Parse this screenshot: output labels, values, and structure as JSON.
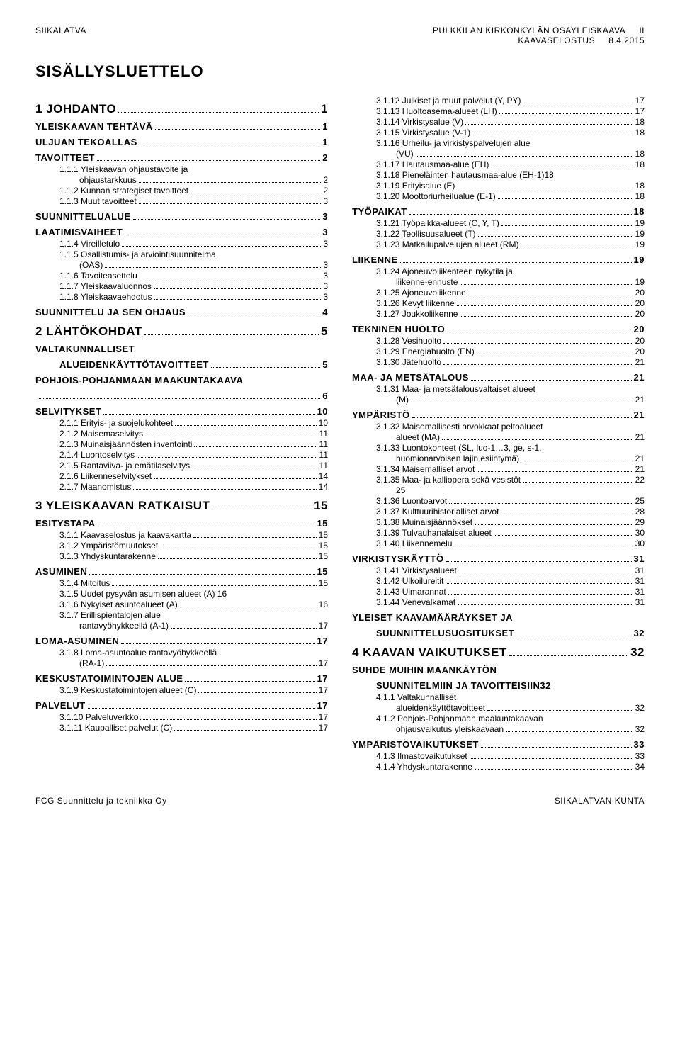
{
  "header": {
    "left": "SIIKALATVA",
    "right1": "PULKKILAN KIRKONKYLÄN OSAYLEISKAAVA",
    "right2": "KAAVASELOSTUS",
    "pageroman": "II",
    "date": "8.4.2015"
  },
  "title": "SISÄLLYSLUETTELO",
  "footer": {
    "left": "FCG Suunnittelu ja tekniikka Oy",
    "right": "SIIKALATVAN KUNTA"
  },
  "colL": [
    {
      "cls": "lvl1",
      "ind": "ind0",
      "label": "1  JOHDANTO",
      "page": "1"
    },
    {
      "cls": "lvl2",
      "ind": "ind0",
      "label": "YLEISKAAVAN TEHTÄVÄ",
      "page": "1"
    },
    {
      "cls": "lvl2",
      "ind": "ind0",
      "label": "ULJUAN TEKOALLAS",
      "page": "1"
    },
    {
      "cls": "lvl2",
      "ind": "ind0",
      "label": "TAVOITTEET",
      "page": "2"
    },
    {
      "cls": "lvl3",
      "ind": "ind1",
      "label": "1.1.1  Yleiskaavan ohjaustavoite ja",
      "nopg": true
    },
    {
      "cls": "lvl3",
      "ind": "ind3",
      "label": "ohjaustarkkuus",
      "page": "2"
    },
    {
      "cls": "lvl3",
      "ind": "ind1",
      "label": "1.1.2  Kunnan strategiset tavoitteet",
      "page": "2"
    },
    {
      "cls": "lvl3",
      "ind": "ind1",
      "label": "1.1.3  Muut tavoitteet",
      "page": "3"
    },
    {
      "cls": "lvl2",
      "ind": "ind0",
      "label": "SUUNNITTELUALUE",
      "page": "3"
    },
    {
      "cls": "lvl2",
      "ind": "ind0",
      "label": "LAATIMISVAIHEET",
      "page": "3"
    },
    {
      "cls": "lvl3",
      "ind": "ind1",
      "label": "1.1.4  Vireilletulo",
      "page": "3"
    },
    {
      "cls": "lvl3",
      "ind": "ind1",
      "label": "1.1.5  Osallistumis- ja arviointisuunnitelma",
      "nopg": true
    },
    {
      "cls": "lvl3",
      "ind": "ind3",
      "label": "(OAS)",
      "page": "3"
    },
    {
      "cls": "lvl3",
      "ind": "ind1",
      "label": "1.1.6  Tavoiteasettelu",
      "page": "3"
    },
    {
      "cls": "lvl3",
      "ind": "ind1",
      "label": "1.1.7  Yleiskaavaluonnos",
      "page": "3"
    },
    {
      "cls": "lvl3",
      "ind": "ind1",
      "label": "1.1.8  Yleiskaavaehdotus",
      "page": "3"
    },
    {
      "cls": "lvl2",
      "ind": "ind0",
      "label": "SUUNNITTELU JA SEN OHJAUS",
      "page": "4"
    },
    {
      "cls": "lvl1",
      "ind": "ind0",
      "label": "2  LÄHTÖKOHDAT",
      "page": "5"
    },
    {
      "cls": "lvl2",
      "ind": "ind0",
      "label": "VALTAKUNNALLISET",
      "nopg": true
    },
    {
      "cls": "lvl2",
      "ind": "ind1",
      "label": "ALUEIDENKÄYTTÖTAVOITTEET",
      "page": "5"
    },
    {
      "cls": "lvl2",
      "ind": "ind0",
      "label": "POHJOIS-POHJANMAAN MAAKUNTAKAAVA",
      "nopg": true
    },
    {
      "cls": "lvl2",
      "ind": "ind0",
      "label": "",
      "page": "6"
    },
    {
      "cls": "lvl2",
      "ind": "ind0",
      "label": "SELVITYKSET",
      "page": "10"
    },
    {
      "cls": "lvl3",
      "ind": "ind1",
      "label": "2.1.1  Erityis- ja suojelukohteet",
      "page": "10"
    },
    {
      "cls": "lvl3",
      "ind": "ind1",
      "label": "2.1.2  Maisemaselvitys",
      "page": "11"
    },
    {
      "cls": "lvl3",
      "ind": "ind1",
      "label": "2.1.3  Muinaisjäännösten inventointi",
      "page": "11"
    },
    {
      "cls": "lvl3",
      "ind": "ind1",
      "label": "2.1.4  Luontoselvitys",
      "page": "11"
    },
    {
      "cls": "lvl3",
      "ind": "ind1",
      "label": "2.1.5  Rantaviiva- ja emätilaselvitys",
      "page": "11"
    },
    {
      "cls": "lvl3",
      "ind": "ind1",
      "label": "2.1.6  Liikenneselvitykset",
      "page": "14"
    },
    {
      "cls": "lvl3",
      "ind": "ind1",
      "label": "2.1.7  Maanomistus",
      "page": "14"
    },
    {
      "cls": "lvl1",
      "ind": "ind0",
      "label": "3  YLEISKAAVAN RATKAISUT",
      "page": "15"
    },
    {
      "cls": "lvl2",
      "ind": "ind0",
      "label": "ESITYSTAPA",
      "page": "15"
    },
    {
      "cls": "lvl3",
      "ind": "ind1",
      "label": "3.1.1  Kaavaselostus ja kaavakartta",
      "page": "15"
    },
    {
      "cls": "lvl3",
      "ind": "ind1",
      "label": "3.1.2  Ympäristömuutokset",
      "page": "15"
    },
    {
      "cls": "lvl3",
      "ind": "ind1",
      "label": "3.1.3  Yhdyskuntarakenne",
      "page": "15"
    },
    {
      "cls": "lvl2",
      "ind": "ind0",
      "label": "ASUMINEN",
      "page": "15"
    },
    {
      "cls": "lvl3",
      "ind": "ind1",
      "label": "3.1.4  Mitoitus",
      "page": "15"
    },
    {
      "cls": "lvl3",
      "ind": "ind1",
      "label": "3.1.5  Uudet pysyvän asumisen alueet (A) 16",
      "nopg": true
    },
    {
      "cls": "lvl3",
      "ind": "ind1",
      "label": "3.1.6  Nykyiset asuntoalueet (A)",
      "page": "16"
    },
    {
      "cls": "lvl3",
      "ind": "ind1",
      "label": "3.1.7  Erillispientalojen alue",
      "nopg": true
    },
    {
      "cls": "lvl3",
      "ind": "ind3",
      "label": "rantavyöhykkeellä (A-1)",
      "page": "17"
    },
    {
      "cls": "lvl2",
      "ind": "ind0",
      "label": "LOMA-ASUMINEN",
      "page": "17"
    },
    {
      "cls": "lvl3",
      "ind": "ind1",
      "label": "3.1.8  Loma-asuntoalue rantavyöhykkeellä",
      "nopg": true
    },
    {
      "cls": "lvl3",
      "ind": "ind3",
      "label": "(RA-1)",
      "page": "17"
    },
    {
      "cls": "lvl2",
      "ind": "ind0",
      "label": "KESKUSTATOIMINTOJEN ALUE",
      "page": "17"
    },
    {
      "cls": "lvl3",
      "ind": "ind1",
      "label": "3.1.9  Keskustatoimintojen alueet (C)",
      "page": "17"
    },
    {
      "cls": "lvl2",
      "ind": "ind0",
      "label": "PALVELUT",
      "page": "17"
    },
    {
      "cls": "lvl3",
      "ind": "ind1",
      "label": "3.1.10 Palveluverkko",
      "page": "17"
    },
    {
      "cls": "lvl3",
      "ind": "ind1",
      "label": "3.1.11 Kaupalliset palvelut (C)",
      "page": "17"
    }
  ],
  "colR": [
    {
      "cls": "lvl3",
      "ind": "ind1",
      "label": "3.1.12 Julkiset ja muut palvelut (Y, PY)",
      "page": "17"
    },
    {
      "cls": "lvl3",
      "ind": "ind1",
      "label": "3.1.13 Huoltoasema-alueet (LH)",
      "page": "17"
    },
    {
      "cls": "lvl3",
      "ind": "ind1",
      "label": "3.1.14 Virkistysalue (V)",
      "page": "18"
    },
    {
      "cls": "lvl3",
      "ind": "ind1",
      "label": "3.1.15 Virkistysalue (V-1)",
      "page": "18"
    },
    {
      "cls": "lvl3",
      "ind": "ind1",
      "label": "3.1.16 Urheilu- ja virkistyspalvelujen alue",
      "nopg": true
    },
    {
      "cls": "lvl3",
      "ind": "ind3",
      "label": "(VU)",
      "page": "18"
    },
    {
      "cls": "lvl3",
      "ind": "ind1",
      "label": "3.1.17 Hautausmaa-alue (EH)",
      "page": "18"
    },
    {
      "cls": "lvl3",
      "ind": "ind1",
      "label": "3.1.18 Pieneläinten hautausmaa-alue (EH-1)18",
      "nopg": true
    },
    {
      "cls": "lvl3",
      "ind": "ind1",
      "label": "3.1.19 Erityisalue (E)",
      "page": "18"
    },
    {
      "cls": "lvl3",
      "ind": "ind1",
      "label": "3.1.20 Moottoriurheilualue (E-1)",
      "page": "18"
    },
    {
      "cls": "lvl2",
      "ind": "ind0",
      "label": "TYÖPAIKAT",
      "page": "18"
    },
    {
      "cls": "lvl3",
      "ind": "ind1",
      "label": "3.1.21 Työpaikka-alueet (C, Y, T)",
      "page": "19"
    },
    {
      "cls": "lvl3",
      "ind": "ind1",
      "label": "3.1.22 Teollisuusalueet (T)",
      "page": "19"
    },
    {
      "cls": "lvl3",
      "ind": "ind1",
      "label": "3.1.23 Matkailupalvelujen alueet (RM)",
      "page": "19"
    },
    {
      "cls": "lvl2",
      "ind": "ind0",
      "label": "LIIKENNE",
      "page": "19"
    },
    {
      "cls": "lvl3",
      "ind": "ind1",
      "label": "3.1.24 Ajoneuvoliikenteen nykytila ja",
      "nopg": true
    },
    {
      "cls": "lvl3",
      "ind": "ind3",
      "label": "liikenne-ennuste",
      "page": "19"
    },
    {
      "cls": "lvl3",
      "ind": "ind1",
      "label": "3.1.25 Ajoneuvoliikenne",
      "page": "20"
    },
    {
      "cls": "lvl3",
      "ind": "ind1",
      "label": "3.1.26 Kevyt liikenne",
      "page": "20"
    },
    {
      "cls": "lvl3",
      "ind": "ind1",
      "label": "3.1.27 Joukkoliikenne",
      "page": "20"
    },
    {
      "cls": "lvl2",
      "ind": "ind0",
      "label": "TEKNINEN HUOLTO",
      "page": "20"
    },
    {
      "cls": "lvl3",
      "ind": "ind1",
      "label": "3.1.28 Vesihuolto",
      "page": "20"
    },
    {
      "cls": "lvl3",
      "ind": "ind1",
      "label": "3.1.29 Energiahuolto (EN)",
      "page": "20"
    },
    {
      "cls": "lvl3",
      "ind": "ind1",
      "label": "3.1.30 Jätehuolto",
      "page": "21"
    },
    {
      "cls": "lvl2",
      "ind": "ind0",
      "label": "MAA- JA METSÄTALOUS",
      "page": "21"
    },
    {
      "cls": "lvl3",
      "ind": "ind1",
      "label": "3.1.31 Maa- ja metsätalousvaltaiset alueet",
      "nopg": true
    },
    {
      "cls": "lvl3",
      "ind": "ind3",
      "label": "(M)",
      "page": "21"
    },
    {
      "cls": "lvl2",
      "ind": "ind0",
      "label": "YMPÄRISTÖ",
      "page": "21"
    },
    {
      "cls": "lvl3",
      "ind": "ind1",
      "label": "3.1.32 Maisemallisesti arvokkaat peltoalueet",
      "nopg": true
    },
    {
      "cls": "lvl3",
      "ind": "ind3",
      "label": "alueet (MA)",
      "page": "21"
    },
    {
      "cls": "lvl3",
      "ind": "ind1",
      "label": "3.1.33 Luontokohteet (SL, luo-1…3, ge, s-1,",
      "nopg": true
    },
    {
      "cls": "lvl3",
      "ind": "ind3",
      "label": "huomionarvoisen lajin esiintymä)",
      "page": "21"
    },
    {
      "cls": "lvl3",
      "ind": "ind1",
      "label": "3.1.34 Maisemalliset arvot",
      "page": "21"
    },
    {
      "cls": "lvl3",
      "ind": "ind1",
      "label": "3.1.35 Maa- ja kalliopera sekä vesistöt",
      "page": "22"
    },
    {
      "cls": "lvl3",
      "ind": "ind3",
      "label": "25",
      "nopg": true
    },
    {
      "cls": "lvl3",
      "ind": "ind1",
      "label": "3.1.36 Luontoarvot",
      "page": "25"
    },
    {
      "cls": "lvl3",
      "ind": "ind1",
      "label": "3.1.37 Kulttuurihistorialliset arvot",
      "page": "28"
    },
    {
      "cls": "lvl3",
      "ind": "ind1",
      "label": "3.1.38 Muinaisjäännökset",
      "page": "29"
    },
    {
      "cls": "lvl3",
      "ind": "ind1",
      "label": "3.1.39 Tulvauhanalaiset alueet",
      "page": "30"
    },
    {
      "cls": "lvl3",
      "ind": "ind1",
      "label": "3.1.40 Liikennemelu",
      "page": "30"
    },
    {
      "cls": "lvl2",
      "ind": "ind0",
      "label": "VIRKISTYSKÄYTTÖ",
      "page": "31"
    },
    {
      "cls": "lvl3",
      "ind": "ind1",
      "label": "3.1.41 Virkistysalueet",
      "page": "31"
    },
    {
      "cls": "lvl3",
      "ind": "ind1",
      "label": "3.1.42 Ulkoilureitit",
      "page": "31"
    },
    {
      "cls": "lvl3",
      "ind": "ind1",
      "label": "3.1.43 Uimarannat",
      "page": "31"
    },
    {
      "cls": "lvl3",
      "ind": "ind1",
      "label": "3.1.44 Venevalkamat",
      "page": "31"
    },
    {
      "cls": "lvl2",
      "ind": "ind0",
      "label": "YLEISET KAAVAMÄÄRÄYKSET JA",
      "nopg": true
    },
    {
      "cls": "lvl2",
      "ind": "ind1",
      "label": "SUUNNITTELUSUOSITUKSET",
      "page": "32"
    },
    {
      "cls": "lvl1",
      "ind": "ind0",
      "label": "4  KAAVAN VAIKUTUKSET",
      "page": "32"
    },
    {
      "cls": "lvl2",
      "ind": "ind0",
      "label": "SUHDE MUIHIN MAANKÄYTÖN",
      "nopg": true
    },
    {
      "cls": "lvl2",
      "ind": "ind1",
      "label": "SUUNNITELMIIN JA TAVOITTEISIIN32",
      "nopg": true
    },
    {
      "cls": "lvl3",
      "ind": "ind1",
      "label": "4.1.1  Valtakunnalliset",
      "nopg": true
    },
    {
      "cls": "lvl3",
      "ind": "ind3",
      "label": "alueidenkäyttötavoitteet",
      "page": "32"
    },
    {
      "cls": "lvl3",
      "ind": "ind1",
      "label": "4.1.2  Pohjois-Pohjanmaan maakuntakaavan",
      "nopg": true
    },
    {
      "cls": "lvl3",
      "ind": "ind3",
      "label": "ohjausvaikutus yleiskaavaan",
      "page": "32"
    },
    {
      "cls": "lvl2",
      "ind": "ind0",
      "label": "YMPÄRISTÖVAIKUTUKSET",
      "page": "33"
    },
    {
      "cls": "lvl3",
      "ind": "ind1",
      "label": "4.1.3  Ilmastovaikutukset",
      "page": "33"
    },
    {
      "cls": "lvl3",
      "ind": "ind1",
      "label": "4.1.4  Yhdyskuntarakenne",
      "page": "34"
    }
  ]
}
